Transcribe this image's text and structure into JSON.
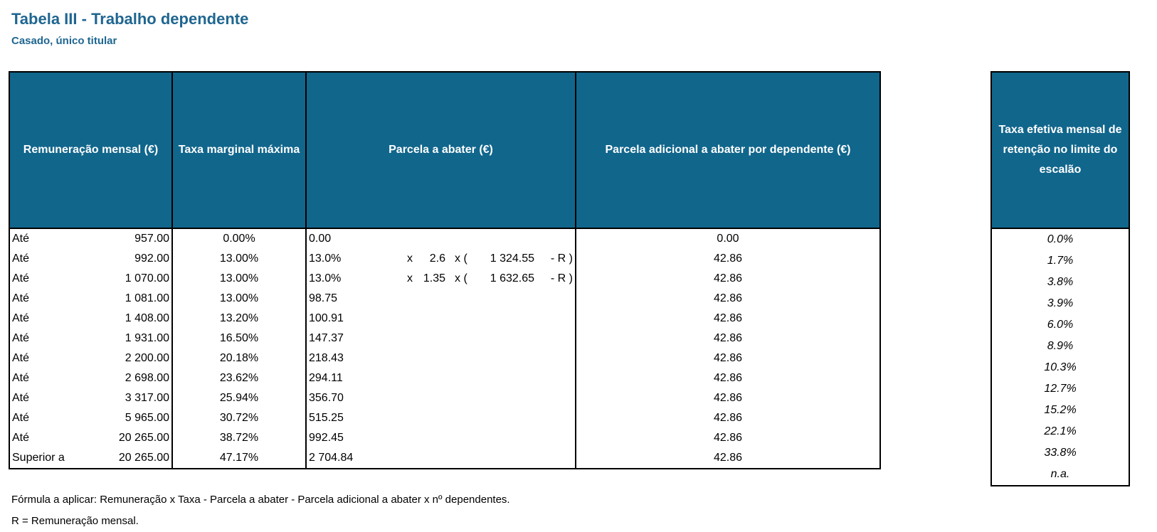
{
  "title": "Tabela III - Trabalho dependente",
  "subtitle": "Casado, único titular",
  "headers": {
    "remuneracao": "Remuneração mensal (€)",
    "taxa": "Taxa marginal máxima",
    "parcela": "Parcela a abater (€)",
    "adicional": "Parcela adicional a abater por dependente (€)",
    "efetiva": "Taxa efetiva mensal de retenção no limite do escalão"
  },
  "rows": [
    {
      "label": "Até",
      "value": "957.00",
      "rate": "0.00%",
      "parcela": "0.00",
      "f1": "",
      "f2": "",
      "f3": "",
      "f4": "",
      "f5": "",
      "adicional": "0.00",
      "efetiva": "0.0%"
    },
    {
      "label": "Até",
      "value": "992.00",
      "rate": "13.00%",
      "parcela": "13.0%",
      "f1": "x",
      "f2": "2.6",
      "f3": "x (",
      "f4": "1 324.55",
      "f5": "- R )",
      "adicional": "42.86",
      "efetiva": "1.7%"
    },
    {
      "label": "Até",
      "value": "1 070.00",
      "rate": "13.00%",
      "parcela": "13.0%",
      "f1": "x",
      "f2": "1.35",
      "f3": "x (",
      "f4": "1 632.65",
      "f5": "- R )",
      "adicional": "42.86",
      "efetiva": "3.8%"
    },
    {
      "label": "Até",
      "value": "1 081.00",
      "rate": "13.00%",
      "parcela": "98.75",
      "f1": "",
      "f2": "",
      "f3": "",
      "f4": "",
      "f5": "",
      "adicional": "42.86",
      "efetiva": "3.9%"
    },
    {
      "label": "Até",
      "value": "1 408.00",
      "rate": "13.20%",
      "parcela": "100.91",
      "f1": "",
      "f2": "",
      "f3": "",
      "f4": "",
      "f5": "",
      "adicional": "42.86",
      "efetiva": "6.0%"
    },
    {
      "label": "Até",
      "value": "1 931.00",
      "rate": "16.50%",
      "parcela": "147.37",
      "f1": "",
      "f2": "",
      "f3": "",
      "f4": "",
      "f5": "",
      "adicional": "42.86",
      "efetiva": "8.9%"
    },
    {
      "label": "Até",
      "value": "2 200.00",
      "rate": "20.18%",
      "parcela": "218.43",
      "f1": "",
      "f2": "",
      "f3": "",
      "f4": "",
      "f5": "",
      "adicional": "42.86",
      "efetiva": "10.3%"
    },
    {
      "label": "Até",
      "value": "2 698.00",
      "rate": "23.62%",
      "parcela": "294.11",
      "f1": "",
      "f2": "",
      "f3": "",
      "f4": "",
      "f5": "",
      "adicional": "42.86",
      "efetiva": "12.7%"
    },
    {
      "label": "Até",
      "value": "3 317.00",
      "rate": "25.94%",
      "parcela": "356.70",
      "f1": "",
      "f2": "",
      "f3": "",
      "f4": "",
      "f5": "",
      "adicional": "42.86",
      "efetiva": "15.2%"
    },
    {
      "label": "Até",
      "value": "5 965.00",
      "rate": "30.72%",
      "parcela": "515.25",
      "f1": "",
      "f2": "",
      "f3": "",
      "f4": "",
      "f5": "",
      "adicional": "42.86",
      "efetiva": "22.1%"
    },
    {
      "label": "Até",
      "value": "20 265.00",
      "rate": "38.72%",
      "parcela": "992.45",
      "f1": "",
      "f2": "",
      "f3": "",
      "f4": "",
      "f5": "",
      "adicional": "42.86",
      "efetiva": "33.8%"
    },
    {
      "label": "Superior a",
      "value": "20 265.00",
      "rate": "47.17%",
      "parcela": "2 704.84",
      "f1": "",
      "f2": "",
      "f3": "",
      "f4": "",
      "f5": "",
      "adicional": "42.86",
      "efetiva": "n.a."
    }
  ],
  "notes": [
    "Fórmula a aplicar: Remuneração x Taxa - Parcela a abater - Parcela adicional a abater x nº dependentes.",
    "R = Remuneração mensal."
  ]
}
